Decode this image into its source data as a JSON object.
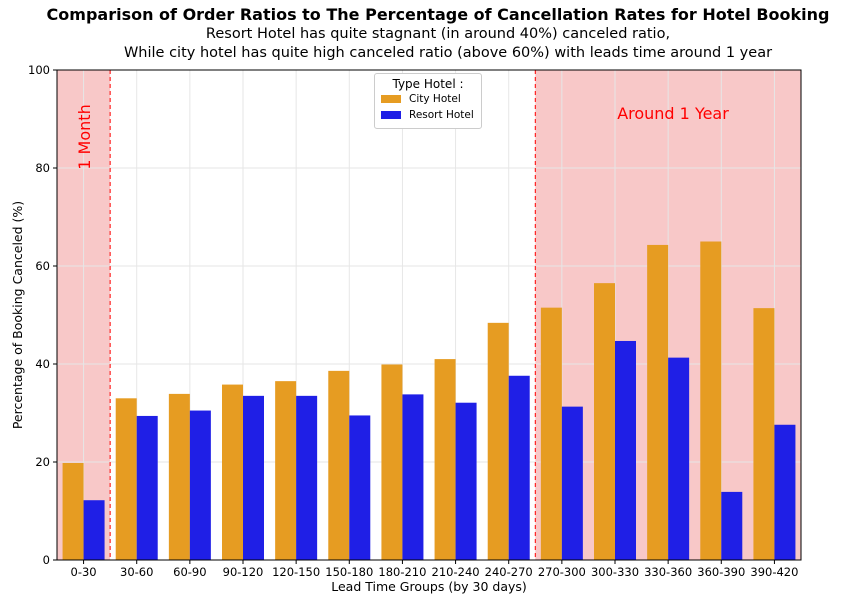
{
  "chart_data": {
    "type": "bar",
    "title": "Comparison of Order Ratios to The Percentage of Cancellation Rates for Hotel Booking",
    "subtitle_lines": [
      "Resort Hotel has quite stagnant (in around 40%) canceled ratio,",
      "While city hotel has quite high canceled ratio (above 60%) with leads time around 1 year"
    ],
    "xlabel": "Lead Time Groups (by 30 days)",
    "ylabel": "Percentage of Booking Canceled (%)",
    "ylim": [
      0,
      100
    ],
    "yticks": [
      "0",
      "20",
      "40",
      "60",
      "80",
      "100"
    ],
    "categories": [
      "0-30",
      "30-60",
      "60-90",
      "90-120",
      "120-150",
      "150-180",
      "180-210",
      "210-240",
      "240-270",
      "270-300",
      "300-330",
      "330-360",
      "360-390",
      "390-420"
    ],
    "series": [
      {
        "name": "City Hotel",
        "color": "#E69C22",
        "values": [
          19.8,
          33.0,
          33.9,
          35.8,
          36.5,
          38.6,
          39.9,
          41.0,
          48.4,
          51.5,
          56.5,
          64.3,
          65.0,
          51.4
        ]
      },
      {
        "name": "Resort Hotel",
        "color": "#1F1FE6",
        "values": [
          12.2,
          29.4,
          30.5,
          33.5,
          33.5,
          29.5,
          33.8,
          32.1,
          37.6,
          31.3,
          44.7,
          41.3,
          13.9,
          27.6
        ]
      }
    ],
    "legend": {
      "title": "Type Hotel :",
      "position": "top-center"
    },
    "grid": true,
    "highlight_color": "#F8C8C8",
    "annotations": [
      {
        "text": "1 Month",
        "region": "0-30"
      },
      {
        "text": "Around 1 Year",
        "region": "270-420"
      }
    ]
  }
}
